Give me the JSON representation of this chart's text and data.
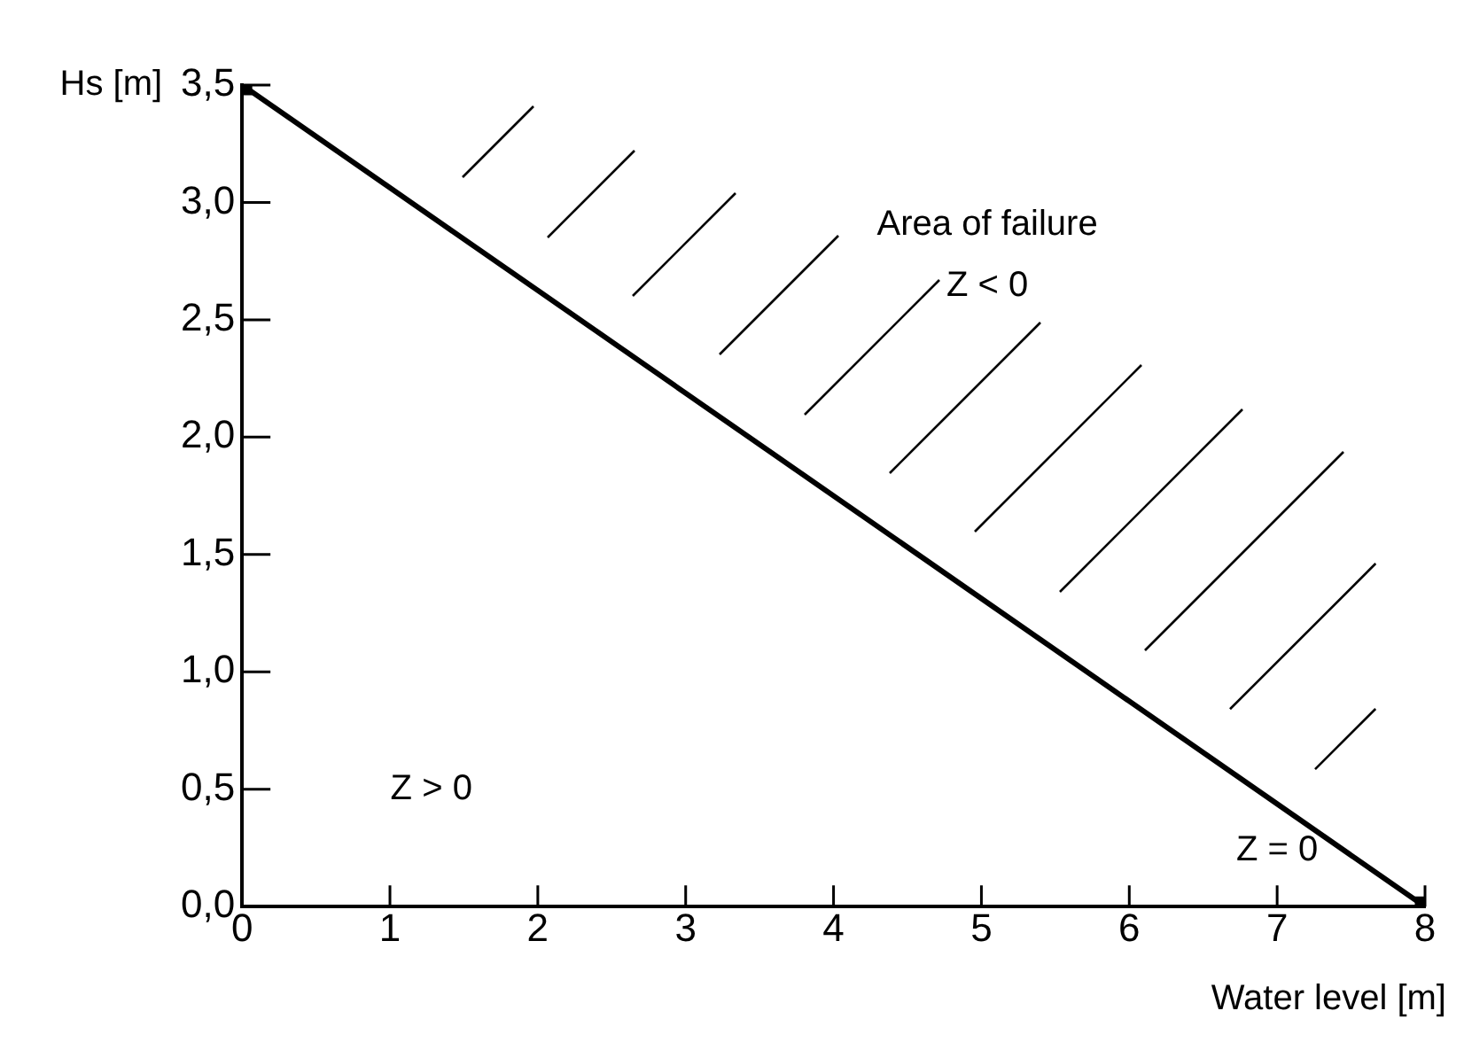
{
  "chart_data": {
    "type": "line",
    "xlabel": "Water level [m]",
    "ylabel": "Hs [m]",
    "x": [
      0,
      8
    ],
    "series": [
      {
        "color": "#000000",
        "values": [
          3.5,
          0
        ]
      }
    ],
    "marker": "square",
    "line_style": "solid",
    "grid": false,
    "legend": false,
    "xlim": [
      0,
      8
    ],
    "xticks": [
      0,
      1,
      2,
      3,
      4,
      5,
      6,
      7,
      8
    ],
    "ylim": [
      0,
      3.5
    ],
    "yticks": [
      {
        "value": 0,
        "label": "0,0"
      },
      {
        "value": 0.5,
        "label": "0,5"
      },
      {
        "value": 1,
        "label": "1,0"
      },
      {
        "value": 1.5,
        "label": "1,5"
      },
      {
        "value": 2,
        "label": "2,0"
      },
      {
        "value": 2.5,
        "label": "2,5"
      },
      {
        "value": 3,
        "label": "3,0"
      },
      {
        "value": 3.5,
        "label": "3,5"
      }
    ],
    "annotations": [
      "Area of failure",
      "Z < 0",
      "Z > 0",
      "Z = 0"
    ]
  }
}
